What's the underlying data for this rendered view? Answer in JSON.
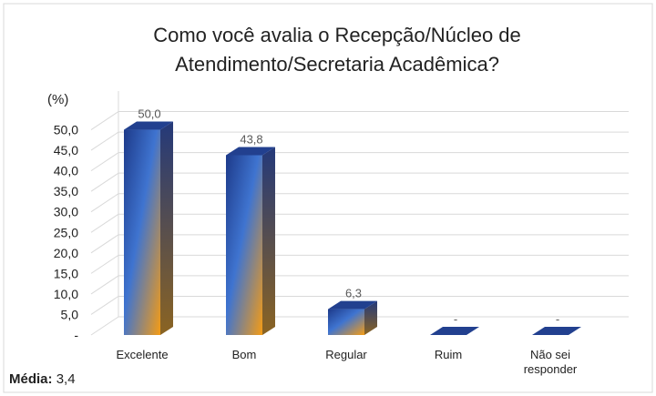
{
  "chart_data": {
    "type": "bar3d",
    "title": [
      "Como você avalia o Recepção/Núcleo de",
      "Atendimento/Secretaria Acadêmica?"
    ],
    "y_label": "(%)",
    "categories": [
      "Excelente",
      "Bom",
      "Regular",
      "Ruim",
      "Não sei responder"
    ],
    "values": [
      50.0,
      43.8,
      6.3,
      0,
      0
    ],
    "value_labels": [
      "50,0",
      "43,8",
      "6,3",
      "-",
      "-"
    ],
    "ylim": [
      0,
      55
    ],
    "yticks": [
      {
        "value": 0,
        "label": "-"
      },
      {
        "value": 5,
        "label": "5,0"
      },
      {
        "value": 10,
        "label": "10,0"
      },
      {
        "value": 15,
        "label": "15,0"
      },
      {
        "value": 20,
        "label": "20,0"
      },
      {
        "value": 25,
        "label": "25,0"
      },
      {
        "value": 30,
        "label": "30,0"
      },
      {
        "value": 35,
        "label": "35,0"
      },
      {
        "value": 40,
        "label": "40,0"
      },
      {
        "value": 45,
        "label": "45,0"
      },
      {
        "value": 50,
        "label": "50,0"
      }
    ],
    "grid": true,
    "note_label": "Média:",
    "note_value": "3,4"
  }
}
